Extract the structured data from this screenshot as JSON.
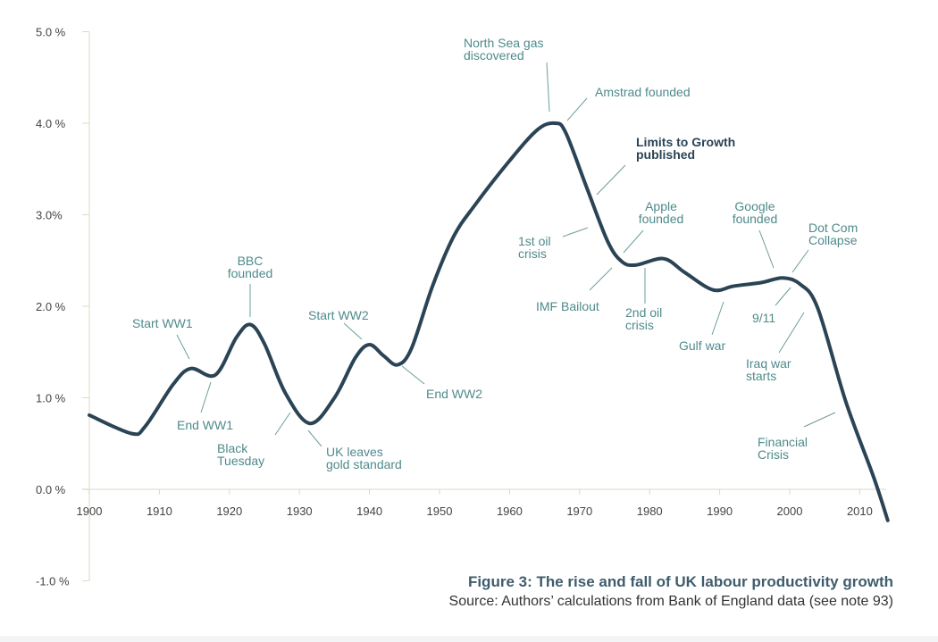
{
  "chart_data": {
    "type": "line",
    "title": "Figure 3: The rise and fall of UK labour productivity growth",
    "source": "Source: Authors’ calculations from Bank of England data (see note 93)",
    "xlabel": "",
    "ylabel": "",
    "xlim": [
      1900,
      2015
    ],
    "ylim": [
      -1.0,
      5.0
    ],
    "x_ticks": [
      "1900",
      "1910",
      "1920",
      "1930",
      "1940",
      "1950",
      "1960",
      "1970",
      "1980",
      "1990",
      "2000",
      "2010"
    ],
    "y_ticks": [
      {
        "value": 5.0,
        "label": "5.0 %"
      },
      {
        "value": 4.0,
        "label": "4.0 %"
      },
      {
        "value": 3.0,
        "label": "3.0%"
      },
      {
        "value": 2.0,
        "label": "2.0 %"
      },
      {
        "value": 1.0,
        "label": "1.0 %"
      },
      {
        "value": 0.0,
        "label": "0.0 %"
      },
      {
        "value": -1.0,
        "label": "-1.0 %"
      }
    ],
    "grid": false,
    "line_color": "#2b4455",
    "annotation_color": "#4f8a8b",
    "series": [
      {
        "x": [
          1900,
          1906,
          1908,
          1912,
          1914.5,
          1918,
          1921,
          1923,
          1925,
          1928,
          1931.5,
          1935,
          1938,
          1940,
          1942,
          1944,
          1946,
          1949,
          1952,
          1955,
          1960,
          1964,
          1966.5,
          1968,
          1971,
          1974,
          1976,
          1978,
          1982,
          1985,
          1989,
          1992,
          1996,
          1999,
          2001.5,
          2004,
          2008,
          2012,
          2014
        ],
        "y": [
          0.81,
          0.61,
          0.69,
          1.15,
          1.32,
          1.25,
          1.66,
          1.8,
          1.59,
          1.05,
          0.72,
          1.0,
          1.44,
          1.58,
          1.46,
          1.36,
          1.54,
          2.22,
          2.76,
          3.1,
          3.59,
          3.93,
          4.0,
          3.9,
          3.3,
          2.71,
          2.49,
          2.45,
          2.52,
          2.37,
          2.18,
          2.22,
          2.26,
          2.31,
          2.24,
          1.98,
          0.96,
          0.13,
          -0.34
        ]
      }
    ],
    "annotations": [
      {
        "lines": [
          "Start WW1"
        ],
        "year": 1914
      },
      {
        "lines": [
          "End WW1"
        ],
        "year": 1918
      },
      {
        "lines": [
          "BBC",
          "founded"
        ],
        "year": 1922
      },
      {
        "lines": [
          "Black",
          "Tuesday"
        ],
        "year": 1929
      },
      {
        "lines": [
          "UK leaves",
          "gold standard"
        ],
        "year": 1931
      },
      {
        "lines": [
          "Start WW2"
        ],
        "year": 1939
      },
      {
        "lines": [
          "End WW2"
        ],
        "year": 1945
      },
      {
        "lines": [
          "North Sea gas",
          "discovered"
        ],
        "year": 1965
      },
      {
        "lines": [
          "Amstrad founded"
        ],
        "year": 1968
      },
      {
        "lines": [
          "Limits to Growth",
          "published"
        ],
        "year": 1972,
        "bold": true
      },
      {
        "lines": [
          "1st oil",
          "crisis"
        ],
        "year": 1973
      },
      {
        "lines": [
          "Apple",
          "founded"
        ],
        "year": 1976
      },
      {
        "lines": [
          "IMF Bailout"
        ],
        "year": 1976
      },
      {
        "lines": [
          "2nd oil",
          "crisis"
        ],
        "year": 1979
      },
      {
        "lines": [
          "Gulf war"
        ],
        "year": 1990
      },
      {
        "lines": [
          "Google",
          "founded"
        ],
        "year": 1998
      },
      {
        "lines": [
          "Dot Com",
          "Collapse"
        ],
        "year": 2000
      },
      {
        "lines": [
          "9/11"
        ],
        "year": 2001
      },
      {
        "lines": [
          "Iraq war",
          "starts"
        ],
        "year": 2003
      },
      {
        "lines": [
          "Financial",
          "Crisis"
        ],
        "year": 2008
      }
    ]
  }
}
